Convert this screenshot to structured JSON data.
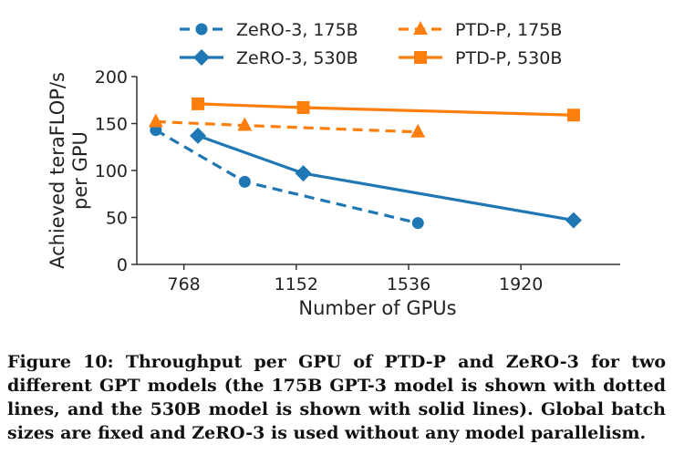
{
  "chart_data": {
    "type": "line",
    "xlabel": "Number of GPUs",
    "ylabel": "Achieved teraFLOP/s per GPU",
    "ylabel_lines": [
      "Achieved teraFLOP/s",
      "per GPU"
    ],
    "xlim": [
      607,
      2172
    ],
    "ylim": [
      0,
      200
    ],
    "xticks": [
      768,
      1152,
      1536,
      1920
    ],
    "yticks": [
      0,
      50,
      100,
      150,
      200
    ],
    "grid": false,
    "legend": "top",
    "series": [
      {
        "name": "ZeRO-3, 175B",
        "color": "#1f77b4",
        "dash": true,
        "marker": "circle",
        "x": [
          672,
          976,
          1568
        ],
        "y": [
          143,
          88,
          44
        ]
      },
      {
        "name": "PTD-P, 175B",
        "color": "#ff7f0e",
        "dash": true,
        "marker": "triangle",
        "x": [
          672,
          976,
          1568
        ],
        "y": [
          152,
          148,
          141
        ]
      },
      {
        "name": "ZeRO-3, 530B",
        "color": "#1f77b4",
        "dash": false,
        "marker": "diamond",
        "x": [
          816,
          1176,
          2100
        ],
        "y": [
          137,
          97,
          47
        ]
      },
      {
        "name": "PTD-P, 530B",
        "color": "#ff7f0e",
        "dash": false,
        "marker": "square",
        "x": [
          816,
          1176,
          2100
        ],
        "y": [
          171,
          167,
          159
        ]
      }
    ]
  },
  "caption": "Figure 10: Throughput per GPU of PTD-P and ZeRO-3 for two different GPT models (the 175B GPT-3 model is shown with dotted lines, and the 530B model is shown with solid lines). Global batch sizes are fixed and ZeRO-3 is used without any model parallelism."
}
